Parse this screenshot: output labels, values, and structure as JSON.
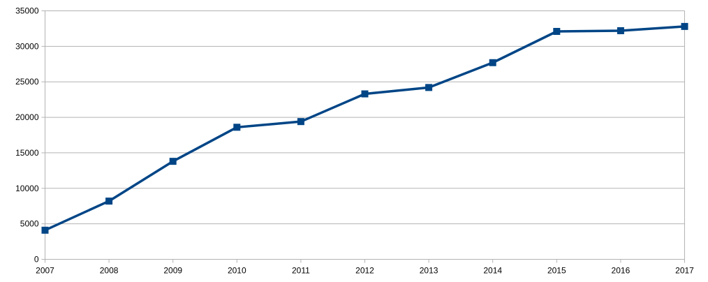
{
  "chart_data": {
    "type": "line",
    "title": "",
    "xlabel": "",
    "ylabel": "",
    "x": [
      2007,
      2008,
      2009,
      2010,
      2011,
      2012,
      2013,
      2014,
      2015,
      2016,
      2017
    ],
    "series": [
      {
        "values": [
          4100,
          8200,
          13800,
          18600,
          19400,
          23300,
          24200,
          27700,
          32100,
          32200,
          32800
        ],
        "color": "#004586",
        "marker": "square"
      }
    ],
    "xlim": [
      2007,
      2017
    ],
    "ylim": [
      0,
      35000
    ],
    "yticks": [
      0,
      5000,
      10000,
      15000,
      20000,
      25000,
      30000,
      35000
    ],
    "xtick_labels": [
      "2007",
      "2008",
      "2009",
      "2010",
      "2011",
      "2012",
      "2013",
      "2014",
      "2015",
      "2016",
      "2017"
    ],
    "ytick_labels": [
      "0",
      "5000",
      "10000",
      "15000",
      "20000",
      "25000",
      "30000",
      "35000"
    ],
    "grid": true,
    "legend": "none"
  }
}
